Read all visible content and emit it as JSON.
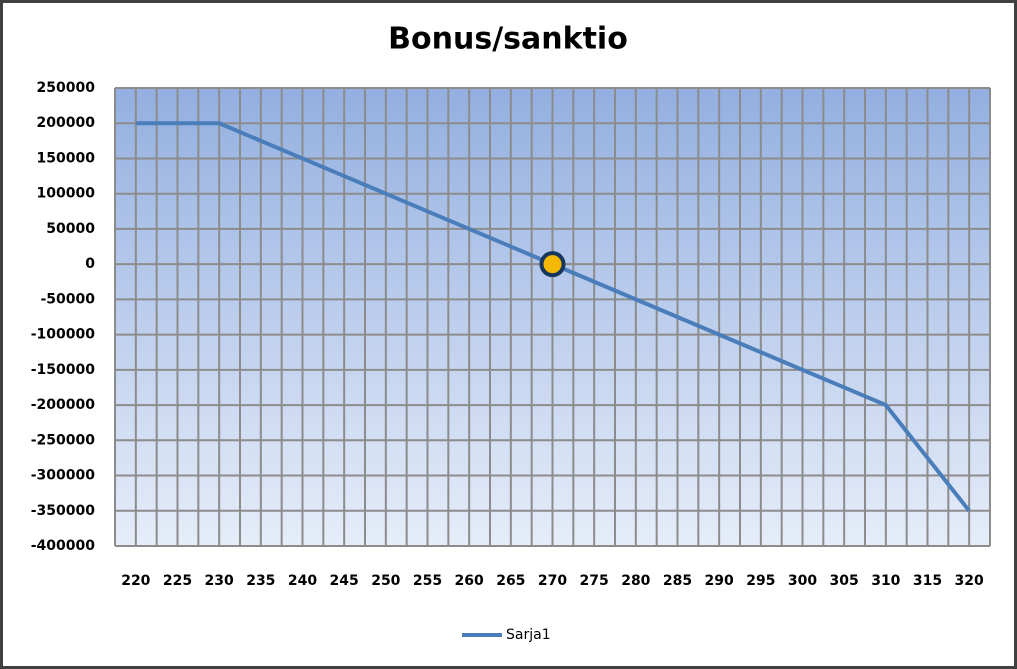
{
  "chart_data": {
    "type": "line",
    "title": "Bonus/sanktio",
    "categories": [
      "220",
      "225",
      "230",
      "235",
      "240",
      "245",
      "250",
      "255",
      "260",
      "265",
      "270",
      "275",
      "280",
      "285",
      "290",
      "295",
      "300",
      "305",
      "310",
      "315",
      "320"
    ],
    "series": [
      {
        "name": "Sarja1",
        "color": "#4a7ebb",
        "values": [
          200000,
          200000,
          200000,
          175000,
          150000,
          125000,
          100000,
          75000,
          50000,
          25000,
          0,
          -25000,
          -50000,
          -75000,
          -100000,
          -125000,
          -150000,
          -175000,
          -200000,
          -275000,
          -350000
        ],
        "highlight_index": 10,
        "highlight_color": "#f5b800"
      }
    ],
    "ylim": [
      -400000,
      250000
    ],
    "yticks": [
      -400000,
      -350000,
      -300000,
      -250000,
      -200000,
      -150000,
      -100000,
      -50000,
      0,
      50000,
      100000,
      150000,
      200000,
      250000
    ],
    "grid": true,
    "legend": "bottom"
  }
}
